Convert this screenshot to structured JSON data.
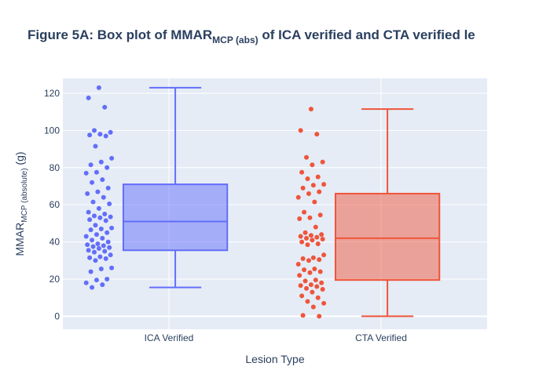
{
  "chart_data": {
    "type": "box",
    "title_main": "Figure 5A: Box plot of MMAR",
    "title_sub": "MCP (abs)",
    "title_rest": " of ICA verified and CTA verified le",
    "xlabel": "Lesion Type",
    "ylabel_main": "MMAR",
    "ylabel_sub": "MCP (absolute)",
    "ylabel_unit": " (g)",
    "categories": [
      "ICA Verified",
      "CTA Verified"
    ],
    "ylim": [
      -7,
      128
    ],
    "yticks": [
      0,
      20,
      40,
      60,
      80,
      100,
      120
    ],
    "grid": true,
    "legend": "none",
    "colors": {
      "ICA Verified": "#636efa",
      "CTA Verified": "#ef553b"
    },
    "series": [
      {
        "category": "ICA Verified",
        "min": 15.5,
        "q1": 35.5,
        "median": 51,
        "q3": 71,
        "max": 123,
        "points": [
          123,
          117.5,
          112.5,
          100,
          99,
          98,
          97.5,
          97,
          91.5,
          85,
          83,
          81.5,
          80,
          77.5,
          77,
          73.5,
          72,
          69,
          67,
          66,
          64,
          61.5,
          60.5,
          58,
          56,
          55,
          54,
          53.5,
          53,
          52,
          51.5,
          49,
          47.5,
          47,
          46.5,
          45,
          44,
          43,
          42,
          41,
          40,
          39,
          38.5,
          38,
          37.5,
          37,
          36.5,
          35.5,
          35,
          34.5,
          33,
          32,
          31.5,
          31,
          30,
          26,
          25.5,
          24,
          20,
          19.5,
          18,
          17,
          15.5
        ]
      },
      {
        "category": "CTA Verified",
        "min": 0,
        "q1": 19.5,
        "median": 42,
        "q3": 66,
        "max": 111.5,
        "points": [
          111.5,
          100,
          98,
          85.5,
          83,
          81.5,
          77.5,
          75,
          74,
          71,
          70.5,
          69,
          67,
          66,
          64,
          61.5,
          56,
          54.5,
          53,
          52.5,
          48,
          45,
          44,
          43.5,
          43,
          42.5,
          42,
          41.5,
          41,
          40,
          39,
          38.5,
          33,
          31.5,
          31,
          30.5,
          30,
          28,
          25.5,
          25,
          24,
          23.5,
          22,
          19.5,
          19,
          18,
          17,
          16.5,
          16,
          15,
          14.5,
          13,
          11,
          10,
          8,
          7,
          5,
          0.5,
          0
        ]
      }
    ]
  }
}
